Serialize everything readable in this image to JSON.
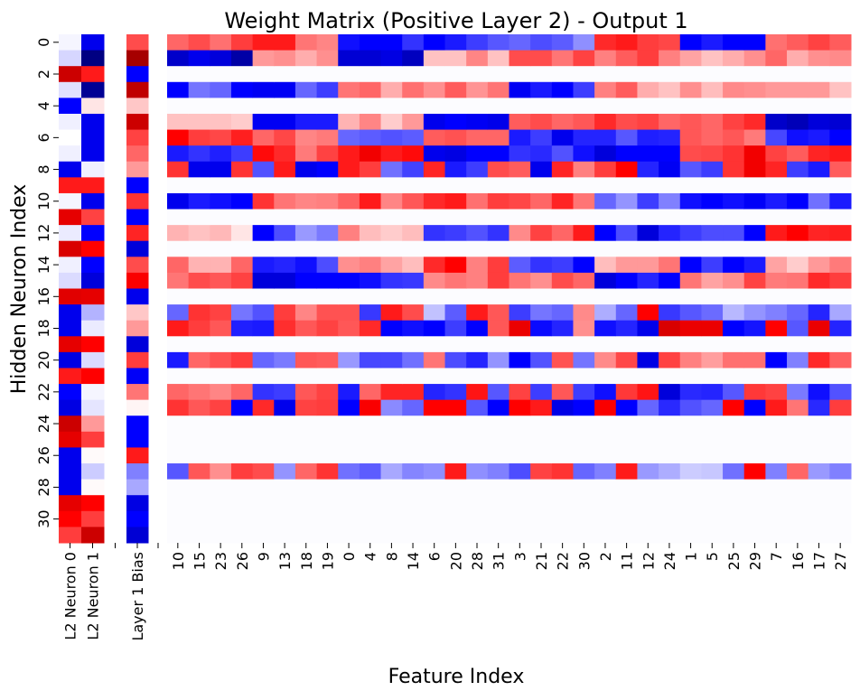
{
  "chart_data": {
    "type": "heatmap",
    "title": "Weight Matrix (Positive Layer 2) - Output 1",
    "xlabel": "Feature Index",
    "ylabel": "Hidden Neuron Index",
    "colormap": "seismic (blue-white-red)",
    "color_range": [
      -1,
      1
    ],
    "colors": {
      "negative": "#0000ff",
      "zero": "#ffffff",
      "positive": "#ff0000"
    },
    "grid": false,
    "colorbar": false,
    "y_tick_labels": [
      "0",
      "2",
      "4",
      "6",
      "8",
      "10",
      "12",
      "14",
      "16",
      "18",
      "20",
      "22",
      "24",
      "26",
      "28",
      "30"
    ],
    "rows": 32,
    "l2_columns": {
      "labels": [
        "L2 Neuron 0",
        "L2 Neuron 1"
      ],
      "values": [
        [
          -0.02,
          -0.08,
          0.7,
          -0.06,
          -0.5,
          -0.03,
          0,
          -0.03,
          -0.55,
          0.45,
          -0.02,
          0.6,
          -0.04,
          0.65,
          -0.03,
          -0.07,
          0.62,
          -0.55,
          -0.55,
          0.6,
          -0.58,
          0.45,
          -0.5,
          -0.58,
          0.7,
          0.6,
          -0.55,
          -0.55,
          -0.55,
          0.6,
          0.5,
          0.38
        ],
        [
          -0.55,
          -0.85,
          0.45,
          -0.8,
          0.05,
          -0.55,
          -0.55,
          -0.55,
          -0.03,
          0.45,
          -0.55,
          0.37,
          -0.5,
          0.5,
          -0.5,
          -0.6,
          0.6,
          -0.15,
          -0.04,
          0.5,
          -0.07,
          0.5,
          -0.02,
          -0.05,
          0.2,
          0.38,
          0.01,
          -0.1,
          0.01,
          0.5,
          0.38,
          0.7
        ]
      ]
    },
    "bias_column": {
      "label": "Layer 1 Bias",
      "values": [
        0.35,
        0.85,
        -0.5,
        0.75,
        0.11,
        0.7,
        0.37,
        0.3,
        0.2,
        -0.5,
        0.4,
        -0.5,
        0.43,
        -0.6,
        0.35,
        0.52,
        -0.55,
        0.11,
        0.2,
        -0.6,
        0.38,
        -0.52,
        0.27,
        0.02,
        -0.5,
        -0.5,
        0.45,
        -0.25,
        -0.17,
        -0.58,
        -0.5,
        -0.62
      ]
    },
    "feature_labels": [
      "10",
      "15",
      "23",
      "26",
      "9",
      "13",
      "18",
      "19",
      "0",
      "4",
      "8",
      "14",
      "6",
      "20",
      "28",
      "31",
      "3",
      "21",
      "22",
      "30",
      "2",
      "11",
      "12",
      "24",
      "1",
      "5",
      "25",
      "29",
      "7",
      "16",
      "17",
      "27"
    ],
    "feature_values": [
      [
        0.3,
        0.35,
        0.28,
        0.38,
        0.45,
        0.45,
        0.27,
        0.24,
        -0.47,
        -0.5,
        -0.5,
        -0.4,
        -0.5,
        -0.45,
        -0.38,
        -0.33,
        -0.3,
        -0.35,
        -0.32,
        -0.22,
        0.42,
        0.45,
        0.38,
        0.36,
        -0.5,
        -0.45,
        -0.5,
        -0.5,
        0.28,
        0.32,
        0.37,
        0.32
      ],
      [
        -0.65,
        -0.55,
        -0.6,
        -0.75,
        0.2,
        0.22,
        0.16,
        0.22,
        -0.62,
        -0.62,
        -0.58,
        -0.68,
        0.12,
        0.12,
        0.24,
        0.12,
        0.35,
        0.35,
        0.27,
        0.37,
        0.25,
        0.32,
        0.38,
        0.25,
        0.18,
        0.12,
        0.16,
        0.22,
        0.3,
        0.16,
        0.22,
        0.23
      ],
      null,
      [
        -0.5,
        -0.27,
        -0.3,
        -0.5,
        -0.53,
        -0.53,
        -0.3,
        -0.38,
        0.27,
        0.3,
        0.16,
        0.28,
        0.22,
        0.32,
        0.21,
        0.27,
        -0.53,
        -0.45,
        -0.5,
        -0.38,
        0.25,
        0.32,
        0.16,
        0.12,
        0.22,
        0.13,
        0.23,
        0.22,
        0.2,
        0.2,
        0.2,
        0.12
      ],
      null,
      [
        0.12,
        0.12,
        0.12,
        0.1,
        -0.53,
        -0.53,
        -0.45,
        -0.45,
        0.15,
        0.24,
        0.1,
        0.2,
        -0.55,
        -0.5,
        -0.53,
        -0.56,
        0.32,
        0.35,
        0.3,
        0.33,
        0.42,
        0.35,
        0.37,
        0.3,
        0.33,
        0.3,
        0.37,
        0.42,
        -0.65,
        -0.7,
        -0.6,
        -0.62
      ],
      [
        0.5,
        0.38,
        0.36,
        0.44,
        0.3,
        0.36,
        0.24,
        0.26,
        -0.3,
        -0.32,
        -0.34,
        -0.32,
        0.32,
        0.34,
        0.3,
        0.3,
        -0.45,
        -0.38,
        -0.55,
        -0.43,
        -0.43,
        -0.33,
        -0.44,
        -0.43,
        0.33,
        0.3,
        0.33,
        0.26,
        -0.36,
        -0.47,
        -0.45,
        -0.5
      ],
      [
        -0.45,
        -0.4,
        -0.44,
        -0.38,
        0.48,
        0.42,
        0.26,
        0.37,
        0.45,
        0.55,
        0.45,
        0.48,
        -0.55,
        -0.58,
        -0.5,
        -0.5,
        -0.4,
        -0.42,
        -0.34,
        -0.47,
        -0.6,
        -0.5,
        -0.5,
        -0.5,
        0.35,
        0.36,
        0.4,
        0.55,
        0.37,
        0.32,
        0.43,
        0.45
      ],
      [
        0.4,
        -0.55,
        -0.55,
        0.4,
        -0.34,
        0.45,
        -0.55,
        -0.5,
        0.45,
        0.38,
        -0.28,
        -0.37,
        0.43,
        -0.45,
        -0.38,
        0.35,
        0.32,
        -0.55,
        0.43,
        0.25,
        0.38,
        0.5,
        -0.43,
        -0.53,
        -0.33,
        -0.38,
        0.4,
        0.55,
        0.43,
        -0.38,
        -0.45,
        0.32
      ],
      null,
      [
        -0.55,
        -0.45,
        -0.47,
        -0.5,
        0.4,
        0.27,
        0.24,
        0.25,
        0.31,
        0.45,
        0.24,
        0.33,
        0.42,
        0.45,
        0.28,
        0.38,
        0.36,
        0.3,
        0.43,
        0.27,
        -0.3,
        -0.21,
        -0.38,
        -0.25,
        -0.47,
        -0.5,
        -0.47,
        -0.52,
        -0.45,
        -0.5,
        -0.28,
        -0.45
      ],
      null,
      [
        0.15,
        0.12,
        0.14,
        0.05,
        -0.5,
        -0.35,
        -0.2,
        -0.26,
        0.25,
        0.13,
        0.1,
        0.13,
        -0.4,
        -0.38,
        -0.34,
        -0.4,
        0.23,
        0.37,
        0.3,
        0.45,
        -0.5,
        -0.35,
        -0.6,
        -0.43,
        -0.38,
        -0.35,
        -0.35,
        -0.5,
        0.45,
        0.5,
        0.43,
        0.44
      ],
      null,
      [
        0.3,
        0.15,
        0.15,
        0.3,
        -0.45,
        -0.43,
        -0.47,
        -0.35,
        0.22,
        0.25,
        0.18,
        0.13,
        0.42,
        0.5,
        0.25,
        0.38,
        -0.32,
        -0.4,
        -0.38,
        -0.5,
        0.13,
        0.2,
        0.2,
        0.27,
        -0.5,
        -0.38,
        -0.5,
        -0.45,
        0.18,
        0.1,
        0.2,
        0.26
      ],
      [
        0.27,
        0.35,
        0.33,
        0.37,
        -0.6,
        -0.6,
        -0.5,
        -0.5,
        -0.5,
        -0.47,
        -0.4,
        -0.39,
        0.23,
        0.27,
        0.25,
        0.38,
        0.27,
        0.22,
        0.35,
        0.3,
        -0.6,
        -0.5,
        -0.43,
        -0.5,
        0.27,
        0.18,
        0.22,
        0.37,
        0.26,
        0.27,
        0.42,
        0.38
      ],
      null,
      [
        -0.3,
        0.4,
        0.37,
        -0.27,
        -0.34,
        0.38,
        0.24,
        0.34,
        0.34,
        -0.39,
        0.45,
        0.35,
        -0.12,
        -0.32,
        0.45,
        0.33,
        -0.38,
        -0.27,
        -0.3,
        0.23,
        -0.16,
        -0.3,
        0.5,
        -0.39,
        -0.33,
        -0.29,
        -0.14,
        -0.21,
        -0.25,
        -0.3,
        -0.43,
        -0.17
      ],
      [
        0.45,
        0.38,
        0.33,
        -0.44,
        -0.45,
        0.41,
        0.33,
        0.37,
        0.33,
        0.42,
        -0.5,
        -0.47,
        -0.5,
        -0.38,
        -0.5,
        0.33,
        0.58,
        -0.48,
        -0.43,
        0.22,
        -0.47,
        -0.43,
        -0.56,
        0.65,
        0.58,
        0.58,
        -0.5,
        -0.46,
        0.5,
        -0.33,
        0.58,
        -0.43
      ],
      null,
      [
        -0.45,
        0.3,
        0.34,
        0.38,
        -0.3,
        -0.26,
        0.33,
        0.32,
        -0.2,
        -0.36,
        -0.36,
        -0.28,
        0.27,
        -0.35,
        -0.43,
        -0.21,
        -0.5,
        -0.34,
        0.34,
        -0.27,
        0.23,
        0.36,
        -0.58,
        0.37,
        0.25,
        0.19,
        0.28,
        0.28,
        -0.5,
        -0.25,
        0.42,
        0.31
      ],
      null,
      [
        0.3,
        0.27,
        0.24,
        0.3,
        -0.4,
        -0.38,
        0.33,
        0.37,
        -0.45,
        0.3,
        0.43,
        0.43,
        -0.43,
        -0.4,
        0.46,
        -0.33,
        0.37,
        -0.38,
        0.33,
        -0.38,
        -0.47,
        0.39,
        0.46,
        -0.6,
        -0.42,
        -0.43,
        -0.33,
        0.39,
        0.37,
        -0.26,
        -0.47,
        -0.34
      ],
      [
        0.4,
        0.33,
        0.37,
        -0.5,
        0.42,
        -0.55,
        0.37,
        0.38,
        -0.5,
        0.52,
        -0.23,
        -0.3,
        0.5,
        0.5,
        -0.33,
        -0.5,
        0.5,
        0.45,
        -0.57,
        -0.5,
        0.52,
        -0.5,
        -0.3,
        -0.42,
        -0.34,
        -0.3,
        0.5,
        -0.5,
        0.45,
        0.27,
        -0.42,
        0.38
      ],
      null,
      null,
      null,
      [
        -0.33,
        0.33,
        0.22,
        0.38,
        0.35,
        -0.21,
        0.3,
        0.4,
        -0.28,
        -0.32,
        -0.17,
        -0.24,
        -0.22,
        0.45,
        -0.22,
        -0.25,
        -0.35,
        0.37,
        0.4,
        -0.3,
        -0.25,
        0.45,
        -0.2,
        -0.16,
        -0.1,
        -0.11,
        -0.28,
        0.5,
        -0.25,
        0.3,
        -0.2,
        -0.25
      ],
      null,
      null,
      null,
      null
    ]
  }
}
